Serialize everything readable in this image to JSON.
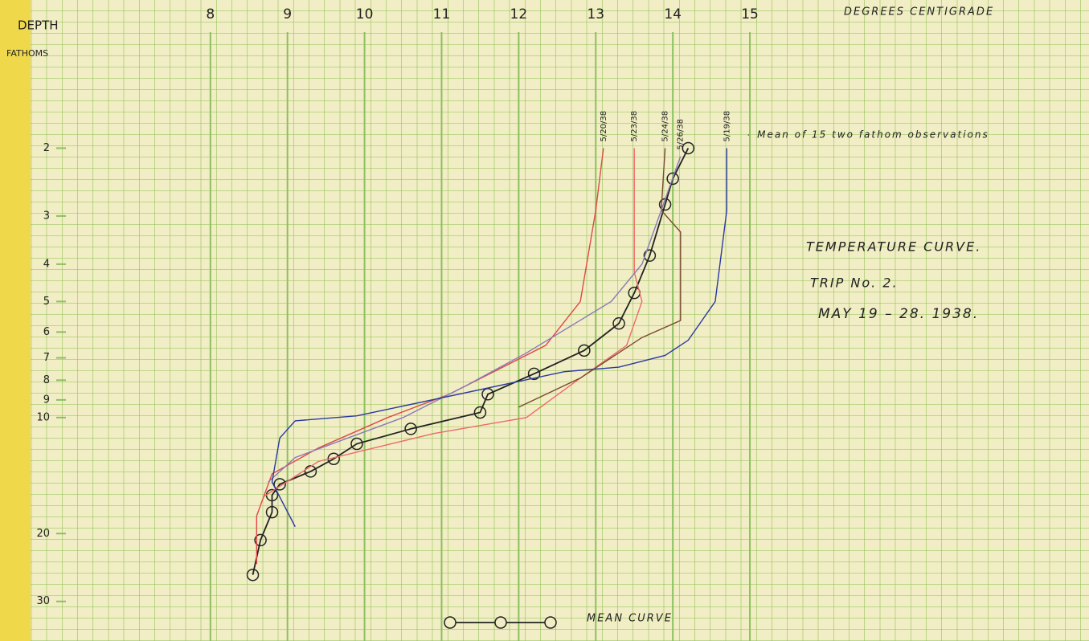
{
  "chart_data": {
    "type": "line",
    "title": "TEMPERATURE CURVE.",
    "subtitle": "TRIP No. 2.",
    "date": "MAY 19 – 28. 1938.",
    "x_label": "DEGREES CENTIGRADE",
    "y_label": "DEPTH",
    "y_unit": "FATHOMS",
    "annotation": "- Mean of 15 two fathom observations",
    "xlim": [
      6,
      19.4
    ],
    "xticks": [
      8,
      9,
      10,
      11,
      12,
      13,
      14,
      15
    ],
    "ylim": [
      1,
      38
    ],
    "ylog": true,
    "yinverted": true,
    "yticks": [
      2,
      3,
      4,
      5,
      6,
      7,
      8,
      9,
      10,
      20,
      30
    ],
    "series": [
      {
        "name": "MEAN CURVE",
        "color": "#222222",
        "markers": true,
        "x": [
          14.2,
          14.0,
          13.9,
          13.7,
          13.5,
          13.3,
          12.85,
          12.2,
          11.6,
          11.5,
          10.6,
          9.9,
          9.6,
          9.3,
          8.9,
          8.8,
          8.8,
          8.65,
          8.55
        ],
        "values": [
          2,
          2.4,
          2.8,
          3.8,
          4.75,
          5.7,
          6.7,
          7.7,
          8.7,
          9.7,
          10.7,
          11.7,
          12.8,
          13.8,
          14.9,
          15.9,
          17.6,
          20.8,
          25.6
        ]
      },
      {
        "name": "5/20/38",
        "color": "#e04848",
        "x": [
          13.1,
          13.0,
          12.8,
          12.35,
          11.1,
          10.3,
          9.4,
          8.8,
          8.6,
          8.6
        ],
        "values": [
          2,
          2.9,
          5,
          6.5,
          8.7,
          10,
          12,
          14,
          18,
          24
        ]
      },
      {
        "name": "5/23/38",
        "color": "#ee6a6a",
        "x": [
          13.5,
          13.5,
          13.6,
          13.4,
          12.8,
          12.1,
          10.9,
          9.4,
          8.7
        ],
        "values": [
          2,
          4.2,
          5,
          6.5,
          7.9,
          10,
          11,
          13,
          16
        ]
      },
      {
        "name": "5/24/38",
        "color": "#7a4a30",
        "x": [
          13.9,
          13.85,
          14.1,
          14.1,
          13.6,
          12.8,
          12.0
        ],
        "values": [
          2,
          2.9,
          3.3,
          5.6,
          6.2,
          7.9,
          9.4
        ]
      },
      {
        "name": "5/26/38",
        "color": "#8a7ab8",
        "x": [
          14.1,
          13.6,
          13.2,
          12.1,
          11.3,
          10.5,
          9.1,
          8.75
        ],
        "values": [
          2.1,
          4,
          5,
          6.8,
          8.3,
          10,
          12.7,
          14.7
        ]
      },
      {
        "name": "5/19/38",
        "color": "#2a3aa0",
        "x": [
          14.7,
          14.7,
          14.55,
          14.2,
          13.9,
          13.3,
          12.6,
          9.9,
          9.1,
          8.9,
          8.8,
          9.1
        ],
        "values": [
          2,
          2.9,
          5,
          6.3,
          6.9,
          7.4,
          7.6,
          9.9,
          10.2,
          11.3,
          14.7,
          19.2
        ]
      }
    ]
  }
}
